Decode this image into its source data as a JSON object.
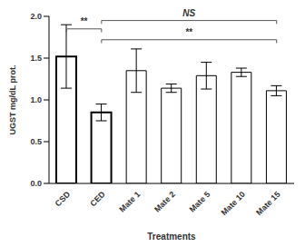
{
  "chart_data": {
    "type": "bar",
    "categories": [
      "CSD",
      "CED",
      "Mate 1",
      "Mate 2",
      "Mate 5",
      "Mate 10",
      "Mate 15"
    ],
    "values": [
      1.52,
      0.85,
      1.35,
      1.14,
      1.29,
      1.33,
      1.11
    ],
    "errors": [
      0.38,
      0.1,
      0.26,
      0.05,
      0.16,
      0.05,
      0.06
    ],
    "color": "#ffffff",
    "ylim": [
      0,
      2
    ],
    "yticks": [
      {
        "value": 0,
        "label": "0.0"
      },
      0.5,
      {
        "value": 1,
        "label": "1.0"
      },
      1.5,
      {
        "value": 2,
        "label": "2.0"
      }
    ],
    "y_label": "UGST mg/dL prot.",
    "x_label": "Treatments",
    "grid": false,
    "annotations": [
      {
        "text": "NS",
        "from": "CED",
        "to": "Mate 15",
        "y": 1.95
      },
      {
        "text": "**",
        "from": "CSD",
        "to": "CED",
        "y": 1.85
      },
      {
        "text": "**",
        "from": "CED",
        "to": "Mate 15",
        "y": 1.72
      }
    ]
  }
}
